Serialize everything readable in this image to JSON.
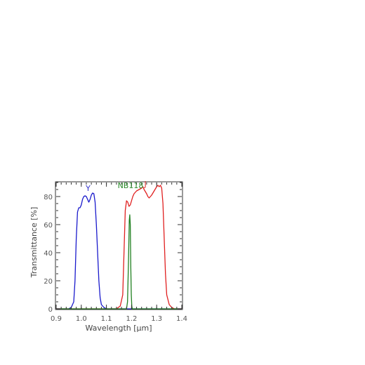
{
  "chart_data": {
    "type": "line",
    "xlabel": "Wavelength [μm]",
    "ylabel": "Transmittance [%]",
    "xlim": [
      0.9,
      1.4
    ],
    "ylim": [
      0,
      90
    ],
    "x_ticks": [
      "0.9",
      "1.0",
      "1.1",
      "1.2",
      "1.3",
      "1.4"
    ],
    "y_ticks": [
      "0",
      "20",
      "40",
      "60",
      "80"
    ],
    "grid": false,
    "annotations": [
      {
        "text": "Y",
        "x": 1.027,
        "y": 84,
        "color": "#3333cc"
      },
      {
        "text": "NB118",
        "x": 1.196,
        "y": 86,
        "color": "#2a8a2a"
      },
      {
        "text": "J",
        "x": 1.255,
        "y": 87,
        "color": "#dd3333"
      }
    ],
    "series": [
      {
        "color": "#1a1acc",
        "points": [
          [
            0.9,
            0
          ],
          [
            0.95,
            0
          ],
          [
            0.96,
            1
          ],
          [
            0.97,
            5
          ],
          [
            0.975,
            20
          ],
          [
            0.98,
            50
          ],
          [
            0.985,
            69
          ],
          [
            0.99,
            72
          ],
          [
            0.995,
            72
          ],
          [
            1.0,
            74
          ],
          [
            1.005,
            78
          ],
          [
            1.01,
            80
          ],
          [
            1.015,
            80.5
          ],
          [
            1.02,
            80
          ],
          [
            1.025,
            78
          ],
          [
            1.03,
            76
          ],
          [
            1.035,
            78
          ],
          [
            1.04,
            81
          ],
          [
            1.045,
            82.5
          ],
          [
            1.05,
            82
          ],
          [
            1.055,
            76
          ],
          [
            1.06,
            60
          ],
          [
            1.065,
            40
          ],
          [
            1.07,
            20
          ],
          [
            1.075,
            8
          ],
          [
            1.08,
            3
          ],
          [
            1.09,
            1
          ],
          [
            1.1,
            0
          ],
          [
            1.4,
            0
          ]
        ]
      },
      {
        "color": "#e02020",
        "points": [
          [
            0.9,
            0
          ],
          [
            1.14,
            0
          ],
          [
            1.155,
            2
          ],
          [
            1.165,
            10
          ],
          [
            1.17,
            40
          ],
          [
            1.175,
            70
          ],
          [
            1.18,
            77
          ],
          [
            1.185,
            76
          ],
          [
            1.19,
            73
          ],
          [
            1.195,
            74
          ],
          [
            1.2,
            77
          ],
          [
            1.205,
            80
          ],
          [
            1.21,
            82
          ],
          [
            1.22,
            84
          ],
          [
            1.23,
            85
          ],
          [
            1.24,
            86
          ],
          [
            1.245,
            87
          ],
          [
            1.25,
            85
          ],
          [
            1.26,
            82
          ],
          [
            1.265,
            80
          ],
          [
            1.27,
            79
          ],
          [
            1.28,
            81
          ],
          [
            1.29,
            84
          ],
          [
            1.3,
            87
          ],
          [
            1.305,
            88
          ],
          [
            1.31,
            87
          ],
          [
            1.315,
            88
          ],
          [
            1.32,
            86
          ],
          [
            1.325,
            75
          ],
          [
            1.33,
            50
          ],
          [
            1.335,
            25
          ],
          [
            1.34,
            10
          ],
          [
            1.35,
            3
          ],
          [
            1.36,
            1
          ],
          [
            1.37,
            0
          ],
          [
            1.4,
            0
          ]
        ]
      },
      {
        "color": "#208020",
        "points": [
          [
            0.9,
            0
          ],
          [
            1.18,
            0
          ],
          [
            1.184,
            5
          ],
          [
            1.188,
            35
          ],
          [
            1.191,
            63
          ],
          [
            1.193,
            67
          ],
          [
            1.195,
            60
          ],
          [
            1.197,
            30
          ],
          [
            1.199,
            10
          ],
          [
            1.201,
            2
          ],
          [
            1.203,
            0
          ],
          [
            1.4,
            0
          ]
        ]
      }
    ]
  }
}
